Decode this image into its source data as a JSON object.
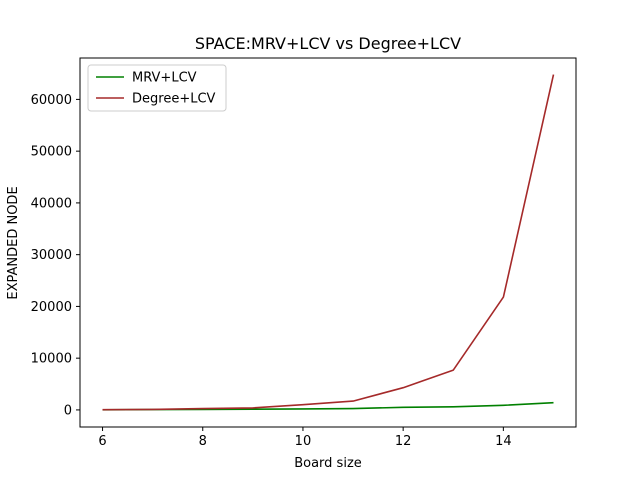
{
  "chart_data": {
    "type": "line",
    "title": "SPACE:MRV+LCV vs Degree+LCV",
    "xlabel": "Board size",
    "ylabel": "EXPANDED NODE",
    "xlim": [
      5.55,
      15.45
    ],
    "ylim": [
      -3300,
      68000
    ],
    "x_ticks": [
      6,
      8,
      10,
      12,
      14
    ],
    "x_tick_labels": [
      "6",
      "8",
      "10",
      "12",
      "14"
    ],
    "y_ticks": [
      0,
      10000,
      20000,
      30000,
      40000,
      50000,
      60000
    ],
    "y_tick_labels": [
      "0",
      "10000",
      "20000",
      "30000",
      "40000",
      "50000",
      "60000"
    ],
    "grid": false,
    "legend": "top-left",
    "x": [
      6,
      7,
      8,
      9,
      10,
      11,
      12,
      13,
      14,
      15
    ],
    "series": [
      {
        "name": "MRV+LCV",
        "color": "#008000",
        "values": [
          30,
          60,
          90,
          130,
          200,
          260,
          500,
          600,
          900,
          1400
        ]
      },
      {
        "name": "Degree+LCV",
        "color": "#a52a2a",
        "values": [
          50,
          100,
          250,
          400,
          1000,
          1700,
          4300,
          7700,
          21800,
          64800
        ]
      }
    ]
  }
}
